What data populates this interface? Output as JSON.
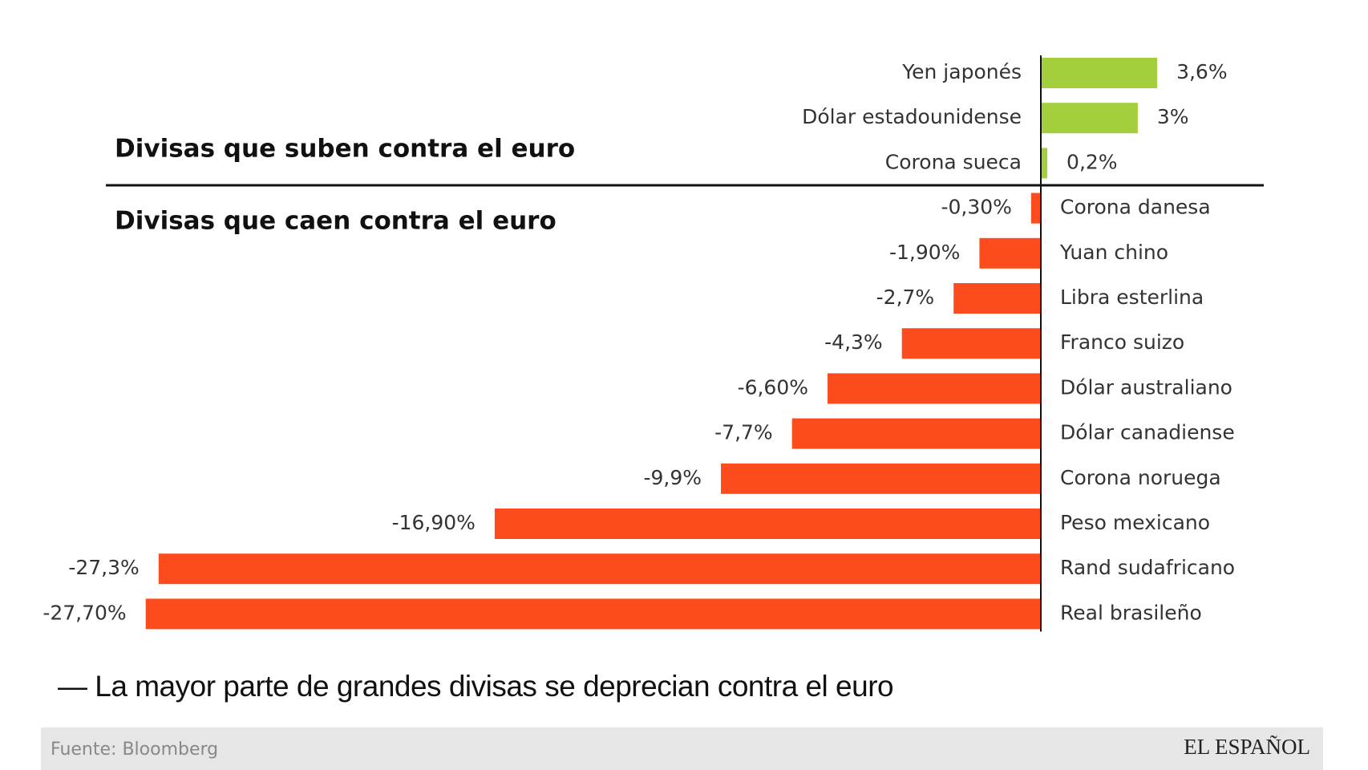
{
  "chart_data": {
    "type": "bar",
    "orientation": "horizontal",
    "title": "— La mayor parte de grandes divisas se deprecian contra el euro",
    "annotations": [
      "Divisas que suben contra el euro",
      "Divisas que caen contra el euro"
    ],
    "source": "Fuente: Bloomberg",
    "brand": "EL ESPAÑOL",
    "categories": [
      "Yen japonés",
      "Dólar estadounidense",
      "Corona sueca",
      "Corona danesa",
      "Yuan chino",
      "Libra esterlina",
      "Franco suizo",
      "Dólar australiano",
      "Dólar canadiense",
      "Corona noruega",
      "Peso mexicano",
      "Rand sudafricano",
      "Real brasileño"
    ],
    "values": [
      3.6,
      3,
      0.2,
      -0.3,
      -1.9,
      -2.7,
      -4.3,
      -6.6,
      -7.7,
      -9.9,
      -16.9,
      -27.3,
      -27.7
    ],
    "value_labels": [
      "3,6%",
      "3%",
      "0,2%",
      "-0,30%",
      "-1,90%",
      "-2,7%",
      "-4,3%",
      "-6,60%",
      "-7,7%",
      "-9,9%",
      "-16,90%",
      "-27,3%",
      "-27,70%"
    ],
    "color_positive": "#a4cf3c",
    "color_negative": "#fc4c1e"
  }
}
